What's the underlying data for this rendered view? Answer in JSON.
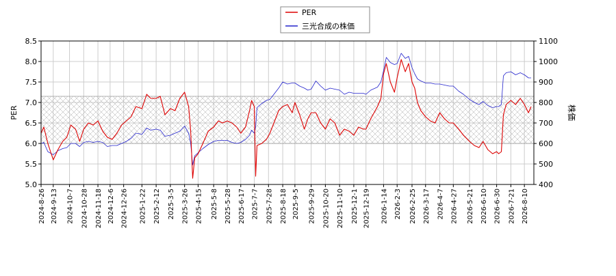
{
  "chart_data": {
    "type": "line",
    "legend_position": "top-center",
    "grid": true,
    "colors": {
      "per": "#dd0000",
      "price": "#2222cc",
      "grid": "#cccccc",
      "band_hatch": "#999999"
    },
    "left_axis": {
      "label": "PER",
      "ylim": [
        5.0,
        8.5
      ],
      "ticks": [
        "5.0",
        "5.5",
        "6.0",
        "6.5",
        "7.0",
        "7.5",
        "8.0",
        "8.5"
      ]
    },
    "right_axis": {
      "label": "株価",
      "ylim": [
        400,
        1100
      ],
      "ticks": [
        "400",
        "500",
        "600",
        "700",
        "800",
        "900",
        "1000",
        "1100"
      ]
    },
    "per_band": [
      6.0,
      7.15
    ],
    "x_range": [
      "2024-08-26",
      "2026-08-24"
    ],
    "x_tick_labels": [
      "2024-8-26",
      "2024-9-13",
      "2024-10-7",
      "2024-10-28",
      "2024-11-18",
      "2024-12-6",
      "2024-12-26",
      "2025-1-22",
      "2025-2-12",
      "2025-3-5",
      "2025-3-26",
      "2025-4-15",
      "2025-5-8",
      "2025-5-28",
      "2025-6-17",
      "2025-7-7",
      "2025-7-28",
      "2025-8-18",
      "2025-9-5",
      "2025-9-29",
      "2025-10-20",
      "2025-11-10",
      "2025-12-1",
      "2025-12-19",
      "2026-1-14",
      "2026-2-3",
      "2026-2-25",
      "2026-3-17",
      "2026-4-7",
      "2026-4-27",
      "2026-5-21",
      "2026-6-10",
      "2026-6-30",
      "2026-7-21",
      "2026-8-10"
    ],
    "series": [
      {
        "name": "PER",
        "axis": "left",
        "points": [
          [
            "2024-08-26",
            6.25
          ],
          [
            "2024-08-30",
            6.4
          ],
          [
            "2024-09-05",
            6.0
          ],
          [
            "2024-09-13",
            5.6
          ],
          [
            "2024-09-20",
            5.85
          ],
          [
            "2024-09-27",
            6.05
          ],
          [
            "2024-10-03",
            6.15
          ],
          [
            "2024-10-09",
            6.45
          ],
          [
            "2024-10-16",
            6.35
          ],
          [
            "2024-10-22",
            6.05
          ],
          [
            "2024-10-28",
            6.35
          ],
          [
            "2024-11-04",
            6.5
          ],
          [
            "2024-11-11",
            6.45
          ],
          [
            "2024-11-18",
            6.55
          ],
          [
            "2024-11-25",
            6.3
          ],
          [
            "2024-12-02",
            6.15
          ],
          [
            "2024-12-09",
            6.1
          ],
          [
            "2024-12-16",
            6.25
          ],
          [
            "2024-12-23",
            6.45
          ],
          [
            "2024-12-30",
            6.55
          ],
          [
            "2025-01-06",
            6.65
          ],
          [
            "2025-01-13",
            6.9
          ],
          [
            "2025-01-22",
            6.85
          ],
          [
            "2025-01-29",
            7.2
          ],
          [
            "2025-02-04",
            7.1
          ],
          [
            "2025-02-12",
            7.1
          ],
          [
            "2025-02-18",
            7.15
          ],
          [
            "2025-02-25",
            6.7
          ],
          [
            "2025-03-05",
            6.85
          ],
          [
            "2025-03-12",
            6.8
          ],
          [
            "2025-03-19",
            7.1
          ],
          [
            "2025-03-26",
            7.25
          ],
          [
            "2025-04-01",
            6.9
          ],
          [
            "2025-04-04",
            6.3
          ],
          [
            "2025-04-07",
            5.15
          ],
          [
            "2025-04-10",
            5.65
          ],
          [
            "2025-04-15",
            5.75
          ],
          [
            "2025-04-22",
            6.0
          ],
          [
            "2025-04-30",
            6.3
          ],
          [
            "2025-05-08",
            6.4
          ],
          [
            "2025-05-15",
            6.55
          ],
          [
            "2025-05-21",
            6.5
          ],
          [
            "2025-05-28",
            6.55
          ],
          [
            "2025-06-04",
            6.5
          ],
          [
            "2025-06-11",
            6.4
          ],
          [
            "2025-06-17",
            6.25
          ],
          [
            "2025-06-24",
            6.4
          ],
          [
            "2025-06-30",
            6.8
          ],
          [
            "2025-07-03",
            7.05
          ],
          [
            "2025-07-07",
            6.9
          ],
          [
            "2025-07-09",
            5.2
          ],
          [
            "2025-07-11",
            5.95
          ],
          [
            "2025-07-18",
            6.0
          ],
          [
            "2025-07-25",
            6.1
          ],
          [
            "2025-07-30",
            6.25
          ],
          [
            "2025-08-05",
            6.5
          ],
          [
            "2025-08-12",
            6.8
          ],
          [
            "2025-08-18",
            6.9
          ],
          [
            "2025-08-25",
            6.95
          ],
          [
            "2025-09-01",
            6.75
          ],
          [
            "2025-09-05",
            7.0
          ],
          [
            "2025-09-12",
            6.7
          ],
          [
            "2025-09-19",
            6.35
          ],
          [
            "2025-09-24",
            6.6
          ],
          [
            "2025-09-29",
            6.75
          ],
          [
            "2025-10-06",
            6.75
          ],
          [
            "2025-10-13",
            6.5
          ],
          [
            "2025-10-20",
            6.35
          ],
          [
            "2025-10-27",
            6.6
          ],
          [
            "2025-11-03",
            6.5
          ],
          [
            "2025-11-10",
            6.2
          ],
          [
            "2025-11-17",
            6.35
          ],
          [
            "2025-11-24",
            6.3
          ],
          [
            "2025-12-01",
            6.2
          ],
          [
            "2025-12-08",
            6.4
          ],
          [
            "2025-12-15",
            6.35
          ],
          [
            "2025-12-19",
            6.35
          ],
          [
            "2025-12-26",
            6.6
          ],
          [
            "2026-01-05",
            6.9
          ],
          [
            "2026-01-10",
            7.1
          ],
          [
            "2026-01-14",
            7.7
          ],
          [
            "2026-01-18",
            7.95
          ],
          [
            "2026-01-24",
            7.5
          ],
          [
            "2026-01-30",
            7.25
          ],
          [
            "2026-02-03",
            7.6
          ],
          [
            "2026-02-09",
            8.05
          ],
          [
            "2026-02-15",
            7.75
          ],
          [
            "2026-02-20",
            7.95
          ],
          [
            "2026-02-25",
            7.5
          ],
          [
            "2026-03-01",
            7.35
          ],
          [
            "2026-03-05",
            7.0
          ],
          [
            "2026-03-10",
            6.8
          ],
          [
            "2026-03-17",
            6.65
          ],
          [
            "2026-03-24",
            6.55
          ],
          [
            "2026-03-31",
            6.5
          ],
          [
            "2026-04-07",
            6.75
          ],
          [
            "2026-04-14",
            6.6
          ],
          [
            "2026-04-21",
            6.5
          ],
          [
            "2026-04-27",
            6.5
          ],
          [
            "2026-05-05",
            6.35
          ],
          [
            "2026-05-12",
            6.2
          ],
          [
            "2026-05-21",
            6.05
          ],
          [
            "2026-05-28",
            5.95
          ],
          [
            "2026-06-04",
            5.9
          ],
          [
            "2026-06-10",
            6.05
          ],
          [
            "2026-06-17",
            5.85
          ],
          [
            "2026-06-24",
            5.75
          ],
          [
            "2026-06-30",
            5.8
          ],
          [
            "2026-07-03",
            5.75
          ],
          [
            "2026-07-07",
            5.8
          ],
          [
            "2026-07-10",
            6.7
          ],
          [
            "2026-07-14",
            6.95
          ],
          [
            "2026-07-21",
            7.05
          ],
          [
            "2026-07-28",
            6.95
          ],
          [
            "2026-08-04",
            7.1
          ],
          [
            "2026-08-10",
            6.95
          ],
          [
            "2026-08-16",
            6.75
          ],
          [
            "2026-08-20",
            6.9
          ]
        ]
      },
      {
        "name": "三光合成の株価",
        "axis": "right",
        "points": [
          [
            "2024-08-26",
            600
          ],
          [
            "2024-08-30",
            605
          ],
          [
            "2024-09-05",
            560
          ],
          [
            "2024-09-13",
            545
          ],
          [
            "2024-09-20",
            565
          ],
          [
            "2024-09-27",
            575
          ],
          [
            "2024-10-03",
            580
          ],
          [
            "2024-10-09",
            600
          ],
          [
            "2024-10-16",
            600
          ],
          [
            "2024-10-22",
            585
          ],
          [
            "2024-10-28",
            605
          ],
          [
            "2024-11-04",
            610
          ],
          [
            "2024-11-11",
            605
          ],
          [
            "2024-11-18",
            610
          ],
          [
            "2024-11-25",
            605
          ],
          [
            "2024-12-02",
            585
          ],
          [
            "2024-12-09",
            590
          ],
          [
            "2024-12-16",
            590
          ],
          [
            "2024-12-23",
            600
          ],
          [
            "2024-12-30",
            610
          ],
          [
            "2025-01-06",
            625
          ],
          [
            "2025-01-13",
            650
          ],
          [
            "2025-01-22",
            645
          ],
          [
            "2025-01-29",
            675
          ],
          [
            "2025-02-04",
            665
          ],
          [
            "2025-02-12",
            670
          ],
          [
            "2025-02-18",
            665
          ],
          [
            "2025-02-25",
            635
          ],
          [
            "2025-03-05",
            640
          ],
          [
            "2025-03-12",
            650
          ],
          [
            "2025-03-19",
            660
          ],
          [
            "2025-03-26",
            685
          ],
          [
            "2025-04-01",
            650
          ],
          [
            "2025-04-04",
            600
          ],
          [
            "2025-04-07",
            495
          ],
          [
            "2025-04-10",
            540
          ],
          [
            "2025-04-15",
            555
          ],
          [
            "2025-04-22",
            575
          ],
          [
            "2025-04-30",
            595
          ],
          [
            "2025-05-08",
            610
          ],
          [
            "2025-05-15",
            615
          ],
          [
            "2025-05-21",
            615
          ],
          [
            "2025-05-28",
            615
          ],
          [
            "2025-06-04",
            605
          ],
          [
            "2025-06-11",
            600
          ],
          [
            "2025-06-17",
            605
          ],
          [
            "2025-06-24",
            620
          ],
          [
            "2025-06-30",
            640
          ],
          [
            "2025-07-03",
            665
          ],
          [
            "2025-07-07",
            650
          ],
          [
            "2025-07-09",
            680
          ],
          [
            "2025-07-11",
            775
          ],
          [
            "2025-07-18",
            795
          ],
          [
            "2025-07-25",
            810
          ],
          [
            "2025-07-30",
            815
          ],
          [
            "2025-08-05",
            840
          ],
          [
            "2025-08-12",
            870
          ],
          [
            "2025-08-18",
            900
          ],
          [
            "2025-08-25",
            890
          ],
          [
            "2025-09-01",
            895
          ],
          [
            "2025-09-05",
            895
          ],
          [
            "2025-09-12",
            880
          ],
          [
            "2025-09-19",
            870
          ],
          [
            "2025-09-24",
            860
          ],
          [
            "2025-09-29",
            865
          ],
          [
            "2025-10-06",
            905
          ],
          [
            "2025-10-13",
            880
          ],
          [
            "2025-10-20",
            860
          ],
          [
            "2025-10-27",
            870
          ],
          [
            "2025-11-03",
            865
          ],
          [
            "2025-11-10",
            860
          ],
          [
            "2025-11-17",
            840
          ],
          [
            "2025-11-24",
            850
          ],
          [
            "2025-12-01",
            845
          ],
          [
            "2025-12-08",
            845
          ],
          [
            "2025-12-15",
            845
          ],
          [
            "2025-12-19",
            840
          ],
          [
            "2025-12-26",
            860
          ],
          [
            "2026-01-05",
            875
          ],
          [
            "2026-01-10",
            900
          ],
          [
            "2026-01-14",
            955
          ],
          [
            "2026-01-18",
            1020
          ],
          [
            "2026-01-24",
            995
          ],
          [
            "2026-01-30",
            985
          ],
          [
            "2026-02-03",
            990
          ],
          [
            "2026-02-09",
            1040
          ],
          [
            "2026-02-15",
            1015
          ],
          [
            "2026-02-20",
            1025
          ],
          [
            "2026-02-25",
            970
          ],
          [
            "2026-03-01",
            940
          ],
          [
            "2026-03-05",
            915
          ],
          [
            "2026-03-10",
            905
          ],
          [
            "2026-03-17",
            895
          ],
          [
            "2026-03-24",
            895
          ],
          [
            "2026-03-31",
            890
          ],
          [
            "2026-04-07",
            890
          ],
          [
            "2026-04-14",
            885
          ],
          [
            "2026-04-21",
            880
          ],
          [
            "2026-04-27",
            880
          ],
          [
            "2026-05-05",
            855
          ],
          [
            "2026-05-12",
            840
          ],
          [
            "2026-05-21",
            815
          ],
          [
            "2026-05-28",
            800
          ],
          [
            "2026-06-04",
            790
          ],
          [
            "2026-06-10",
            805
          ],
          [
            "2026-06-17",
            785
          ],
          [
            "2026-06-24",
            775
          ],
          [
            "2026-06-30",
            780
          ],
          [
            "2026-07-03",
            780
          ],
          [
            "2026-07-07",
            790
          ],
          [
            "2026-07-10",
            930
          ],
          [
            "2026-07-14",
            945
          ],
          [
            "2026-07-21",
            950
          ],
          [
            "2026-07-28",
            935
          ],
          [
            "2026-08-04",
            945
          ],
          [
            "2026-08-10",
            935
          ],
          [
            "2026-08-16",
            920
          ],
          [
            "2026-08-20",
            920
          ]
        ]
      }
    ]
  }
}
